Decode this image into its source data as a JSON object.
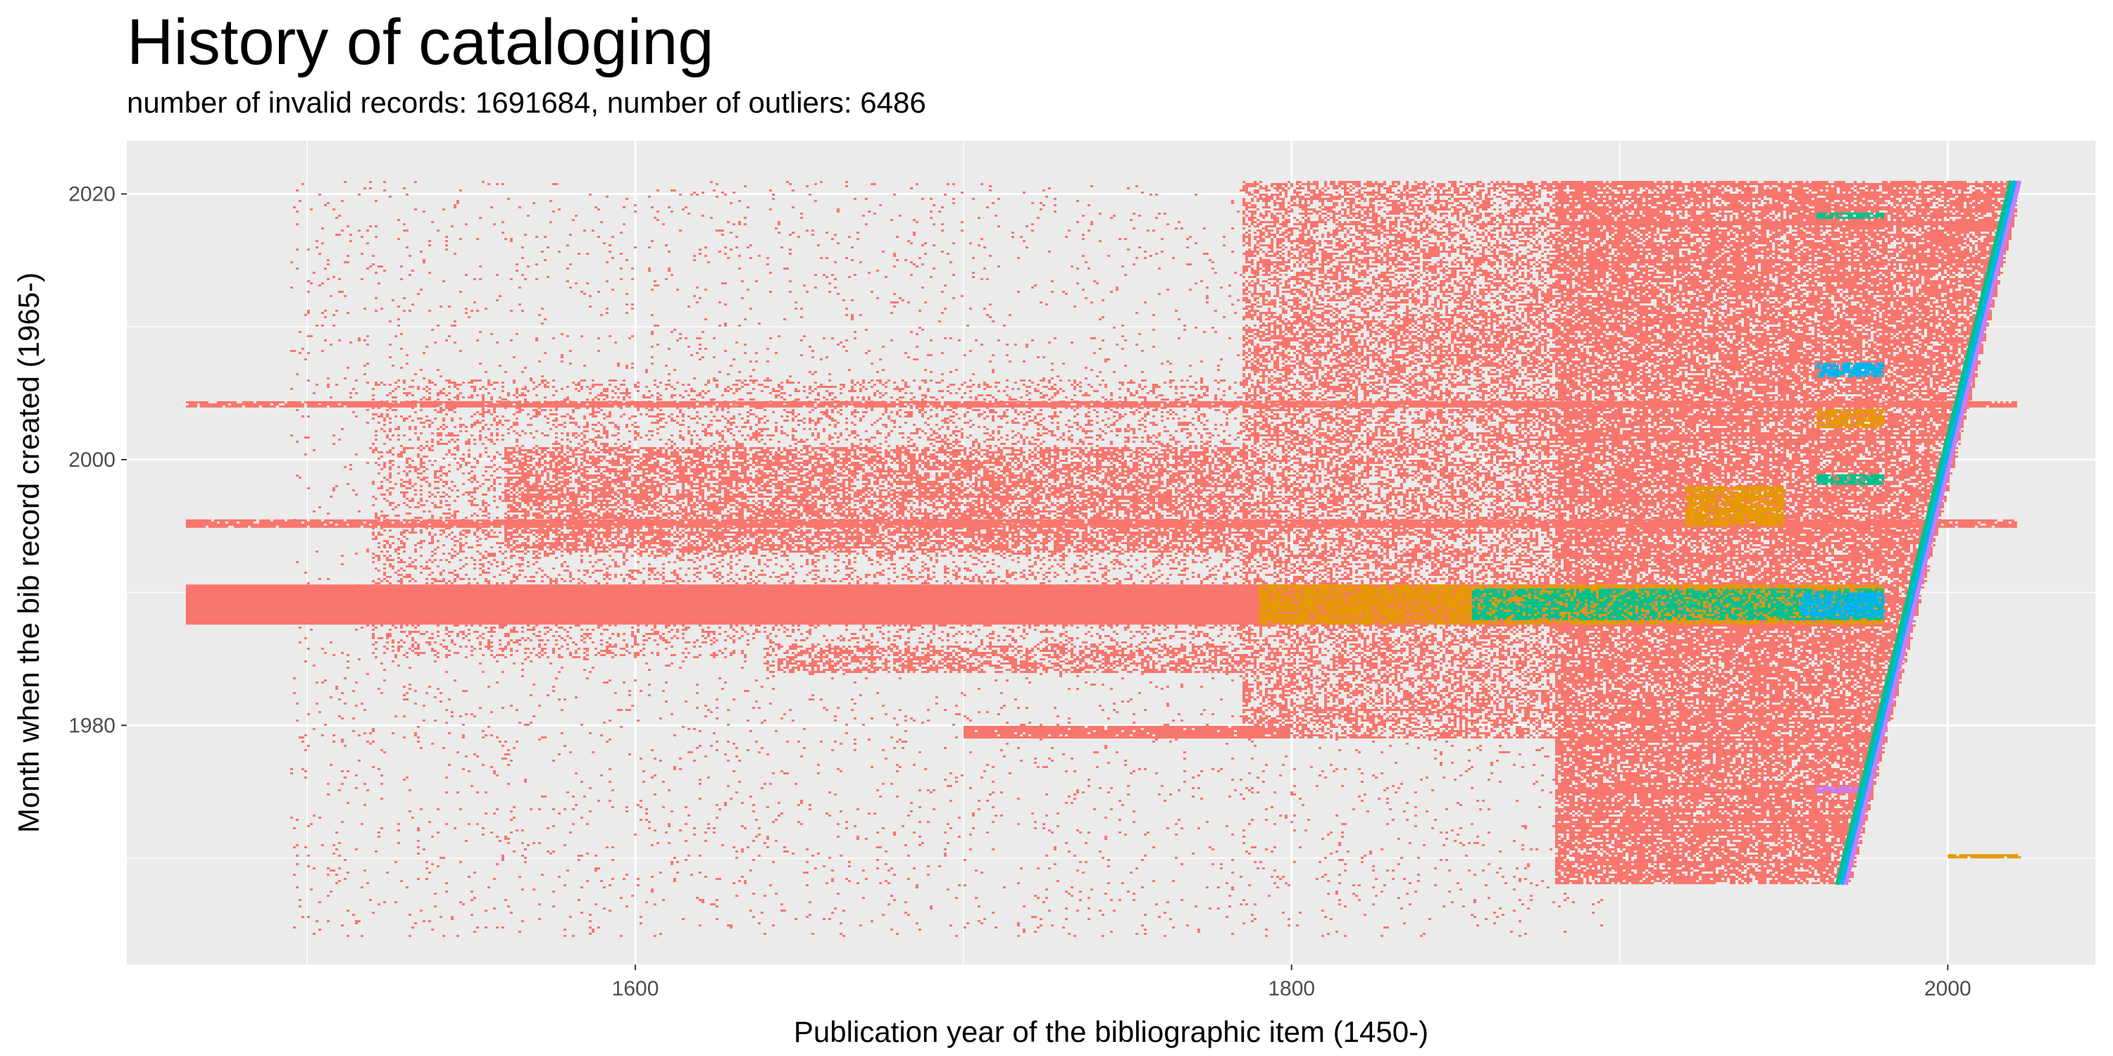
{
  "chart_data": {
    "type": "heatmap",
    "title": "History of cataloging",
    "subtitle": "number of invalid records: 1691684, number of outliers: 6486",
    "xlabel": "Publication year of the bibliographic item (1450-)",
    "ylabel": "Month when the bib record created (1965-)",
    "xlim": [
      1445,
      2045
    ],
    "ylim": [
      1962,
      2024
    ],
    "x_ticks": [
      1600,
      1800,
      2000
    ],
    "y_ticks": [
      1980,
      2000,
      2020
    ],
    "grid": true,
    "background": "#ebebeb",
    "colors": {
      "low_density": "#f8766d",
      "medium_density": "#e59a00",
      "high_density": "#00c08b",
      "very_high_density": "#00b4f0",
      "peak_density": "#c77cff"
    },
    "regions": [
      {
        "x": [
          1495,
          1895
        ],
        "y": [
          1964,
          2021
        ],
        "level": 0.03
      },
      {
        "x": [
          1520,
          2021
        ],
        "y": [
          1985,
          2006
        ],
        "level": 0.22
      },
      {
        "x": [
          1785,
          2021
        ],
        "y": [
          1979,
          2021
        ],
        "level": 0.5
      },
      {
        "x": [
          1880,
          2021
        ],
        "y": [
          1968,
          2021
        ],
        "level": 0.75
      },
      {
        "x": [
          1560,
          1790
        ],
        "y": [
          1993,
          2001
        ],
        "level": 0.62
      },
      {
        "x": [
          1700,
          1800
        ],
        "y": [
          1979,
          1980
        ],
        "level": 0.95
      },
      {
        "x": [
          1640,
          1790
        ],
        "y": [
          1984,
          1986
        ],
        "level": 0.55
      },
      {
        "x": [
          1790,
          1960
        ],
        "y": [
          2007,
          2011
        ],
        "level": 0.6
      }
    ],
    "bands": [
      {
        "x": [
          1463,
          1980
        ],
        "y": [
          1987.6,
          1990.6
        ],
        "level": 1,
        "color": "low_density"
      },
      {
        "x": [
          1790,
          1980
        ],
        "y": [
          1987.6,
          1990.6
        ],
        "level": 0.8,
        "color": "medium_density"
      },
      {
        "x": [
          1855,
          1980
        ],
        "y": [
          1988.0,
          1990.3
        ],
        "level": 0.7,
        "color": "high_density"
      },
      {
        "x": [
          1955,
          1980
        ],
        "y": [
          1988.2,
          1990.0
        ],
        "level": 0.75,
        "color": "very_high_density"
      },
      {
        "x": [
          1463,
          2021
        ],
        "y": [
          2004.0,
          2004.4
        ],
        "level": 0.9,
        "color": "low_density"
      },
      {
        "x": [
          1463,
          2021
        ],
        "y": [
          1995.0,
          1995.5
        ],
        "level": 0.9,
        "color": "low_density"
      },
      {
        "x": [
          1920,
          1950
        ],
        "y": [
          1995,
          1998
        ],
        "level": 0.8,
        "color": "medium_density"
      },
      {
        "x": [
          1960,
          1980
        ],
        "y": [
          2006.3,
          2007.3
        ],
        "level": 0.85,
        "color": "very_high_density"
      },
      {
        "x": [
          1960,
          1980
        ],
        "y": [
          1998.2,
          1998.9
        ],
        "level": 0.8,
        "color": "high_density"
      },
      {
        "x": [
          1960,
          1980
        ],
        "y": [
          2002.5,
          2003.8
        ],
        "level": 0.75,
        "color": "medium_density"
      },
      {
        "x": [
          1960,
          1980
        ],
        "y": [
          2018.2,
          2018.6
        ],
        "level": 0.8,
        "color": "high_density"
      },
      {
        "x": [
          1960,
          1975
        ],
        "y": [
          1975,
          1975.4
        ],
        "level": 0.8,
        "color": "peak_density"
      },
      {
        "x": [
          2000,
          2022
        ],
        "y": [
          1970,
          1970.3
        ],
        "level": 0.9,
        "color": "medium_density"
      }
    ],
    "diagonal": {
      "from": [
        1968,
        1968
      ],
      "to": [
        2021,
        2021
      ]
    }
  }
}
